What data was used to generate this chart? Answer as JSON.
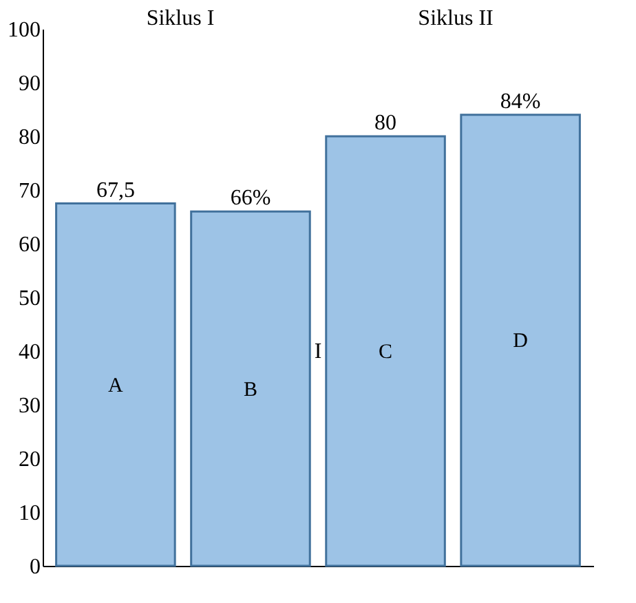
{
  "chart_data": {
    "type": "bar",
    "categories": [
      "A",
      "B",
      "C",
      "D"
    ],
    "values": [
      67.5,
      66,
      80,
      84
    ],
    "value_labels": [
      "67,5",
      "66%",
      "80",
      "84%"
    ],
    "color": "#9dc3e6",
    "ylim": [
      0,
      100
    ],
    "yticks": [
      0,
      10,
      20,
      30,
      40,
      50,
      60,
      70,
      80,
      90,
      100
    ],
    "tick_labels": "y",
    "grid": false,
    "annotations": [
      "Siklus I",
      "Siklus II",
      "I"
    ]
  }
}
